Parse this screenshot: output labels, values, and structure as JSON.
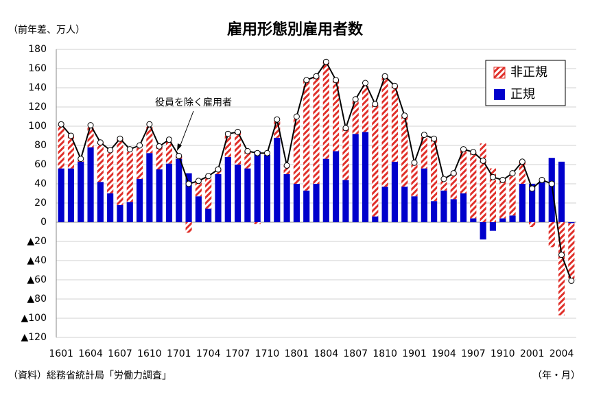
{
  "chart_data": {
    "type": "bar",
    "stacked": true,
    "title": "雇用形態別雇用者数",
    "y_unit_label": "（前年差、万人）",
    "x_unit_label": "（年・月）",
    "source": "（資料）総務省統計局「労働力調査」",
    "annotation": "役員を除く雇用者",
    "categories": [
      "1601",
      null,
      null,
      "1604",
      null,
      null,
      "1607",
      null,
      null,
      "1610",
      null,
      null,
      "1701",
      null,
      null,
      "1704",
      null,
      null,
      "1707",
      null,
      null,
      "1710",
      null,
      null,
      "1801",
      null,
      null,
      "1804",
      null,
      null,
      "1807",
      null,
      null,
      "1810",
      null,
      null,
      "1901",
      null,
      null,
      "1904",
      null,
      null,
      "1907",
      null,
      null,
      "1910",
      null,
      null,
      "2001",
      null,
      null,
      "2004",
      null
    ],
    "series": [
      {
        "name": "正規",
        "type": "bar",
        "color": "#0000cc",
        "values": [
          56,
          56,
          63,
          78,
          42,
          30,
          18,
          21,
          45,
          72,
          55,
          61,
          66,
          51,
          27,
          14,
          50,
          68,
          60,
          56,
          74,
          70,
          88,
          50,
          40,
          33,
          40,
          66,
          74,
          44,
          92,
          94,
          6,
          37,
          63,
          37,
          27,
          56,
          22,
          33,
          24,
          30,
          4,
          -18,
          -9,
          4,
          7,
          40,
          40,
          42,
          67,
          63,
          -1
        ]
      },
      {
        "name": "非正規",
        "type": "bar",
        "color": "#e0302a",
        "hatched": true,
        "values": [
          46,
          34,
          3,
          23,
          41,
          45,
          69,
          55,
          35,
          30,
          24,
          25,
          3,
          -11,
          16,
          34,
          5,
          24,
          34,
          18,
          -2,
          2,
          19,
          9,
          70,
          115,
          112,
          101,
          74,
          54,
          36,
          51,
          117,
          115,
          79,
          74,
          35,
          35,
          65,
          12,
          27,
          46,
          69,
          82,
          56,
          40,
          44,
          23,
          -5,
          2,
          -26,
          -97,
          -60
        ]
      },
      {
        "name": "役員を除く雇用者",
        "type": "line",
        "color": "#000000",
        "values": [
          102,
          90,
          66,
          101,
          83,
          75,
          87,
          76,
          80,
          102,
          79,
          86,
          69,
          40,
          43,
          48,
          55,
          92,
          94,
          74,
          72,
          72,
          107,
          59,
          110,
          148,
          152,
          167,
          148,
          98,
          128,
          145,
          123,
          152,
          142,
          111,
          62,
          91,
          87,
          45,
          51,
          76,
          73,
          64,
          47,
          44,
          51,
          63,
          35,
          44,
          40,
          -34,
          -61
        ]
      }
    ],
    "ylim": [
      -120,
      180
    ],
    "yticks": [
      {
        "value": -120,
        "label": "▲120"
      },
      {
        "value": -100,
        "label": "▲100"
      },
      {
        "value": -80,
        "label": "▲80"
      },
      {
        "value": -60,
        "label": "▲60"
      },
      {
        "value": -40,
        "label": "▲40"
      },
      {
        "value": -20,
        "label": "▲20"
      },
      0,
      20,
      40,
      60,
      80,
      100,
      120,
      140,
      160,
      180
    ],
    "grid": true,
    "legend": "top-right"
  }
}
